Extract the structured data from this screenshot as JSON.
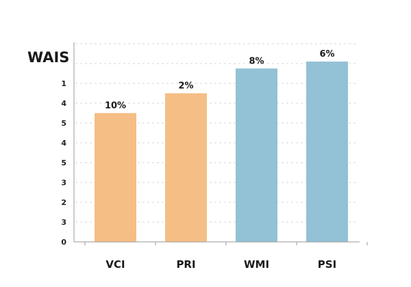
{
  "chart_data": {
    "type": "bar",
    "title": "WAIS",
    "xlabel": "",
    "ylabel": "",
    "categories": [
      "VCI",
      "PRI",
      "WMI",
      "PSI"
    ],
    "values": [
      6.5,
      7.5,
      8.75,
      9.1
    ],
    "data_labels": [
      "10%",
      "2%",
      "8%",
      "6%"
    ],
    "y_tick_labels": [
      "0",
      "3",
      "2",
      "3",
      "5",
      "4",
      "5",
      "4",
      "1",
      ""
    ],
    "ylim": [
      0,
      10
    ],
    "grid": true,
    "bar_colors": [
      "#F5BE84",
      "#F5BE84",
      "#93C1D6",
      "#93C1D6"
    ]
  }
}
